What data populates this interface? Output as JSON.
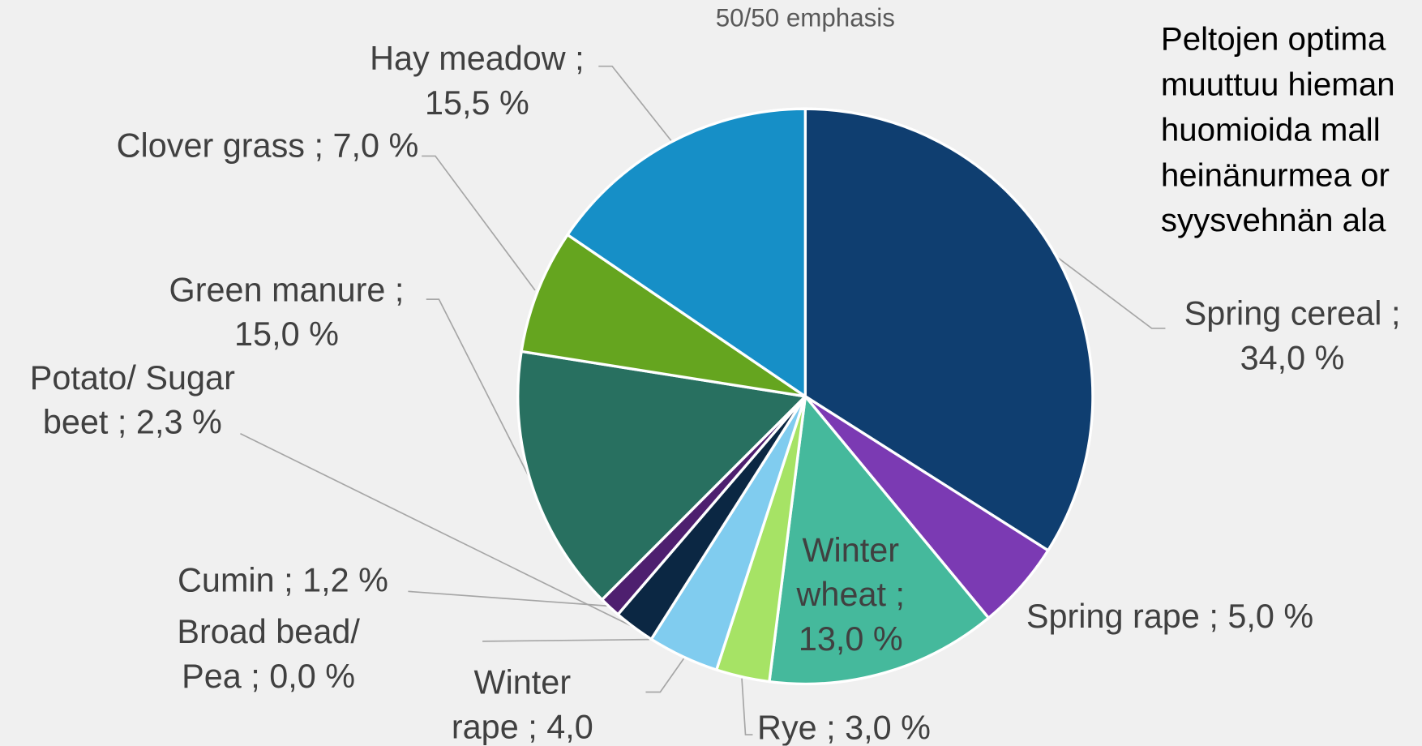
{
  "chart_data": {
    "type": "pie",
    "title": "50/50 emphasis",
    "values": [
      34.0,
      5.0,
      13.0,
      3.0,
      4.0,
      0.0,
      2.3,
      1.2,
      15.0,
      7.0,
      15.5
    ],
    "value_labels": [
      "Spring cereal ; 34,0 %",
      "Spring rape ; 5,0 %",
      "Winter wheat ; 13,0 %",
      "Rye ; 3,0 %",
      "Winter rape ; 4,0",
      "Broad bead/ Pea ; 0,0 %",
      "Potato/ Sugar beet ; 2,3 %",
      "Cumin ; 1,2 %",
      "Green manure ; 15,0 %",
      "Clover grass ; 7,0 %",
      "Hay meadow ; 15,5 %"
    ],
    "colors": [
      "#0f3e70",
      "#7b3ab3",
      "#45b99c",
      "#a6e365",
      "#80ccef",
      "#555555",
      "#0b2743",
      "#4e1f6f",
      "#287060",
      "#65a51f",
      "#168fc7"
    ]
  },
  "note": {
    "lines": [
      "Peltojen optima",
      "muuttuu hieman",
      "huomioida mall",
      "heinänurmea or",
      "syysvehnän ala"
    ]
  }
}
